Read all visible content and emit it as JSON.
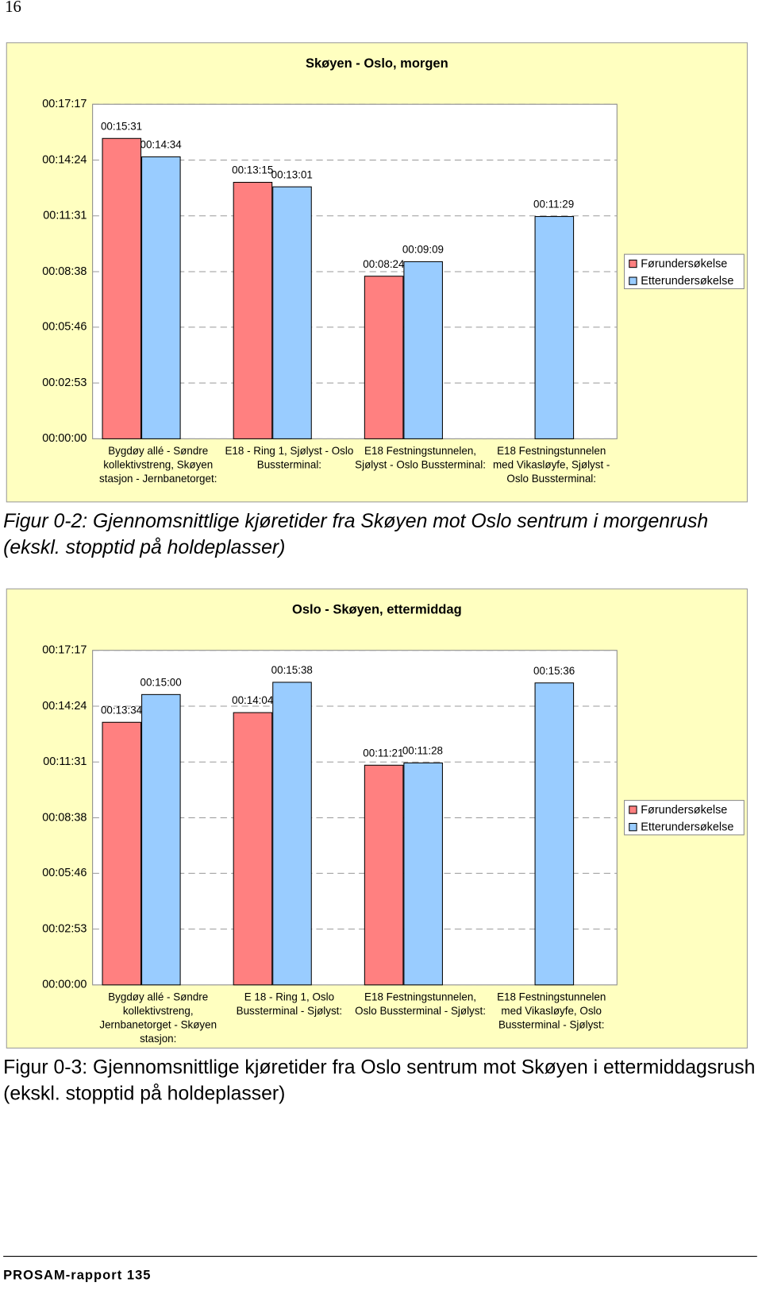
{
  "page_number": "16",
  "chart_data": [
    {
      "type": "bar",
      "title": "Skøyen - Oslo, morgen",
      "categories": [
        "Bygdøy allé - Søndre kollektivstreng, Skøyen stasjon - Jernbanetorget:",
        "E18 - Ring 1, Sjølyst - Oslo Bussterminal:",
        "E18 Festningstunnelen, Sjølyst - Oslo Bussterminal:",
        "E18 Festningstunnelen med Vikasløyfe, Sjølyst - Oslo Bussterminal:"
      ],
      "series": [
        {
          "name": "Førundersøkelse",
          "color": "#ff8080",
          "values": [
            931,
            795,
            504,
            null
          ],
          "value_labels": [
            "00:15:31",
            "00:13:15",
            "00:08:24",
            null
          ]
        },
        {
          "name": "Etterundersøkelse",
          "color": "#99ccff",
          "values": [
            874,
            781,
            549,
            689
          ],
          "value_labels": [
            "00:14:34",
            "00:13:01",
            "00:09:09",
            "00:11:29"
          ]
        }
      ],
      "ylim": [
        0,
        1037
      ],
      "yticks": [
        {
          "value": 0,
          "label": "00:00:00"
        },
        {
          "value": 173,
          "label": "00:02:53"
        },
        {
          "value": 346,
          "label": "00:05:46"
        },
        {
          "value": 518,
          "label": "00:08:38"
        },
        {
          "value": 691,
          "label": "00:11:31"
        },
        {
          "value": 864,
          "label": "00:14:24"
        },
        {
          "value": 1037,
          "label": "00:17:17"
        }
      ],
      "grid": true,
      "legend": "right"
    },
    {
      "type": "bar",
      "title": "Oslo - Skøyen, ettermiddag",
      "categories": [
        "Bygdøy allé - Søndre kollektivstreng, Jernbanetorget - Skøyen stasjon:",
        "E 18 - Ring 1, Oslo Bussterminal - Sjølyst:",
        "E18 Festningstunnelen, Oslo Bussterminal - Sjølyst:",
        "E18 Festningstunnelen med Vikasløyfe, Oslo Bussterminal - Sjølyst:"
      ],
      "series": [
        {
          "name": "Førundersøkelse",
          "color": "#ff8080",
          "values": [
            814,
            844,
            681,
            null
          ],
          "value_labels": [
            "00:13:34",
            "00:14:04",
            "00:11:21",
            null
          ]
        },
        {
          "name": "Etterundersøkelse",
          "color": "#99ccff",
          "values": [
            900,
            938,
            688,
            936
          ],
          "value_labels": [
            "00:15:00",
            "00:15:38",
            "00:11:28",
            "00:15:36"
          ]
        }
      ],
      "ylim": [
        0,
        1037
      ],
      "yticks": [
        {
          "value": 0,
          "label": "00:00:00"
        },
        {
          "value": 173,
          "label": "00:02:53"
        },
        {
          "value": 346,
          "label": "00:05:46"
        },
        {
          "value": 518,
          "label": "00:08:38"
        },
        {
          "value": 691,
          "label": "00:11:31"
        },
        {
          "value": 864,
          "label": "00:14:24"
        },
        {
          "value": 1037,
          "label": "00:17:17"
        }
      ],
      "grid": true,
      "legend": "right"
    }
  ],
  "captions": [
    "Figur 0-2: Gjennomsnittlige kjøretider fra Skøyen mot Oslo sentrum i morgenrush (ekskl. stopptid på holdeplasser)",
    "Figur 0-3: Gjennomsnittlige kjøretider fra Oslo sentrum mot Skøyen i ettermiddagsrush (ekskl. stopptid på holdeplasser)"
  ],
  "footer": "PROSAM-rapport 135"
}
